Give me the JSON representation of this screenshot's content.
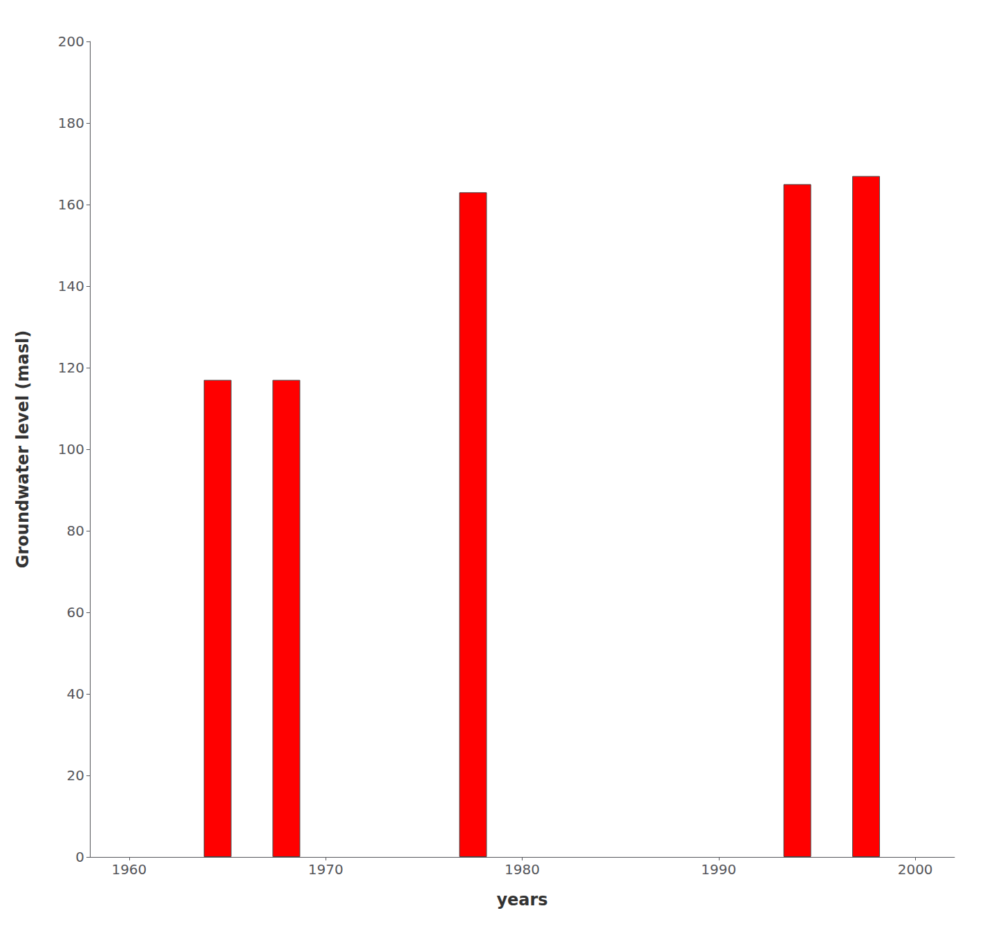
{
  "chart_data": {
    "type": "bar",
    "x": [
      1964.5,
      1968.0,
      1977.5,
      1994.0,
      1997.5
    ],
    "values": [
      117,
      117,
      163,
      165,
      167
    ],
    "color": "#ff0000",
    "xlabel": "years",
    "ylabel": "Groundwater level (masl)",
    "xlim": [
      1958,
      2002
    ],
    "xticks": [
      1960,
      1970,
      1980,
      1990,
      2000
    ],
    "ylim": [
      0,
      200
    ],
    "yticks": [
      0,
      20,
      40,
      60,
      80,
      100,
      120,
      140,
      160,
      180,
      200
    ],
    "grid": false
  }
}
